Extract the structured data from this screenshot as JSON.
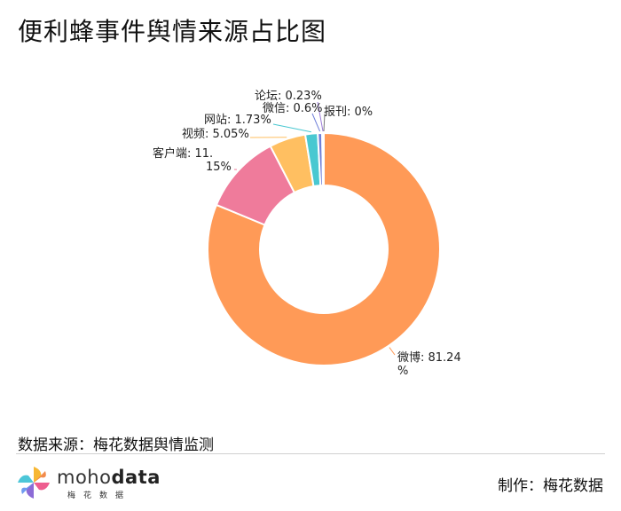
{
  "header": {
    "title": "便利蜂事件舆情来源占比图"
  },
  "chart_data": {
    "type": "pie",
    "variant": "donut",
    "title": "便利蜂事件舆情来源占比图",
    "slices": [
      {
        "name": "微博",
        "value": 81.24,
        "label": "微博: 81.24%",
        "color": "#ff9a57"
      },
      {
        "name": "客户端",
        "value": 11.15,
        "label": "客户端: 11.15%",
        "color": "#ef7b9b"
      },
      {
        "name": "视频",
        "value": 5.05,
        "label": "视频: 5.05%",
        "color": "#ffbf61"
      },
      {
        "name": "网站",
        "value": 1.73,
        "label": "网站: 1.73%",
        "color": "#49c8d1"
      },
      {
        "name": "微信",
        "value": 0.6,
        "label": "微信: 0.6%",
        "color": "#6f7fd9"
      },
      {
        "name": "论坛",
        "value": 0.23,
        "label": "论坛: 0.23%",
        "color": "#9b7bd8"
      },
      {
        "name": "报刊",
        "value": 0,
        "label": "报刊: 0%",
        "color": "#7a7a7a"
      }
    ]
  },
  "footer": {
    "source": "数据来源：梅花数据舆情监测",
    "logo_text_light": "moho",
    "logo_text_bold": "data",
    "logo_sub": "梅花数据",
    "maker": "制作：梅花数据"
  }
}
